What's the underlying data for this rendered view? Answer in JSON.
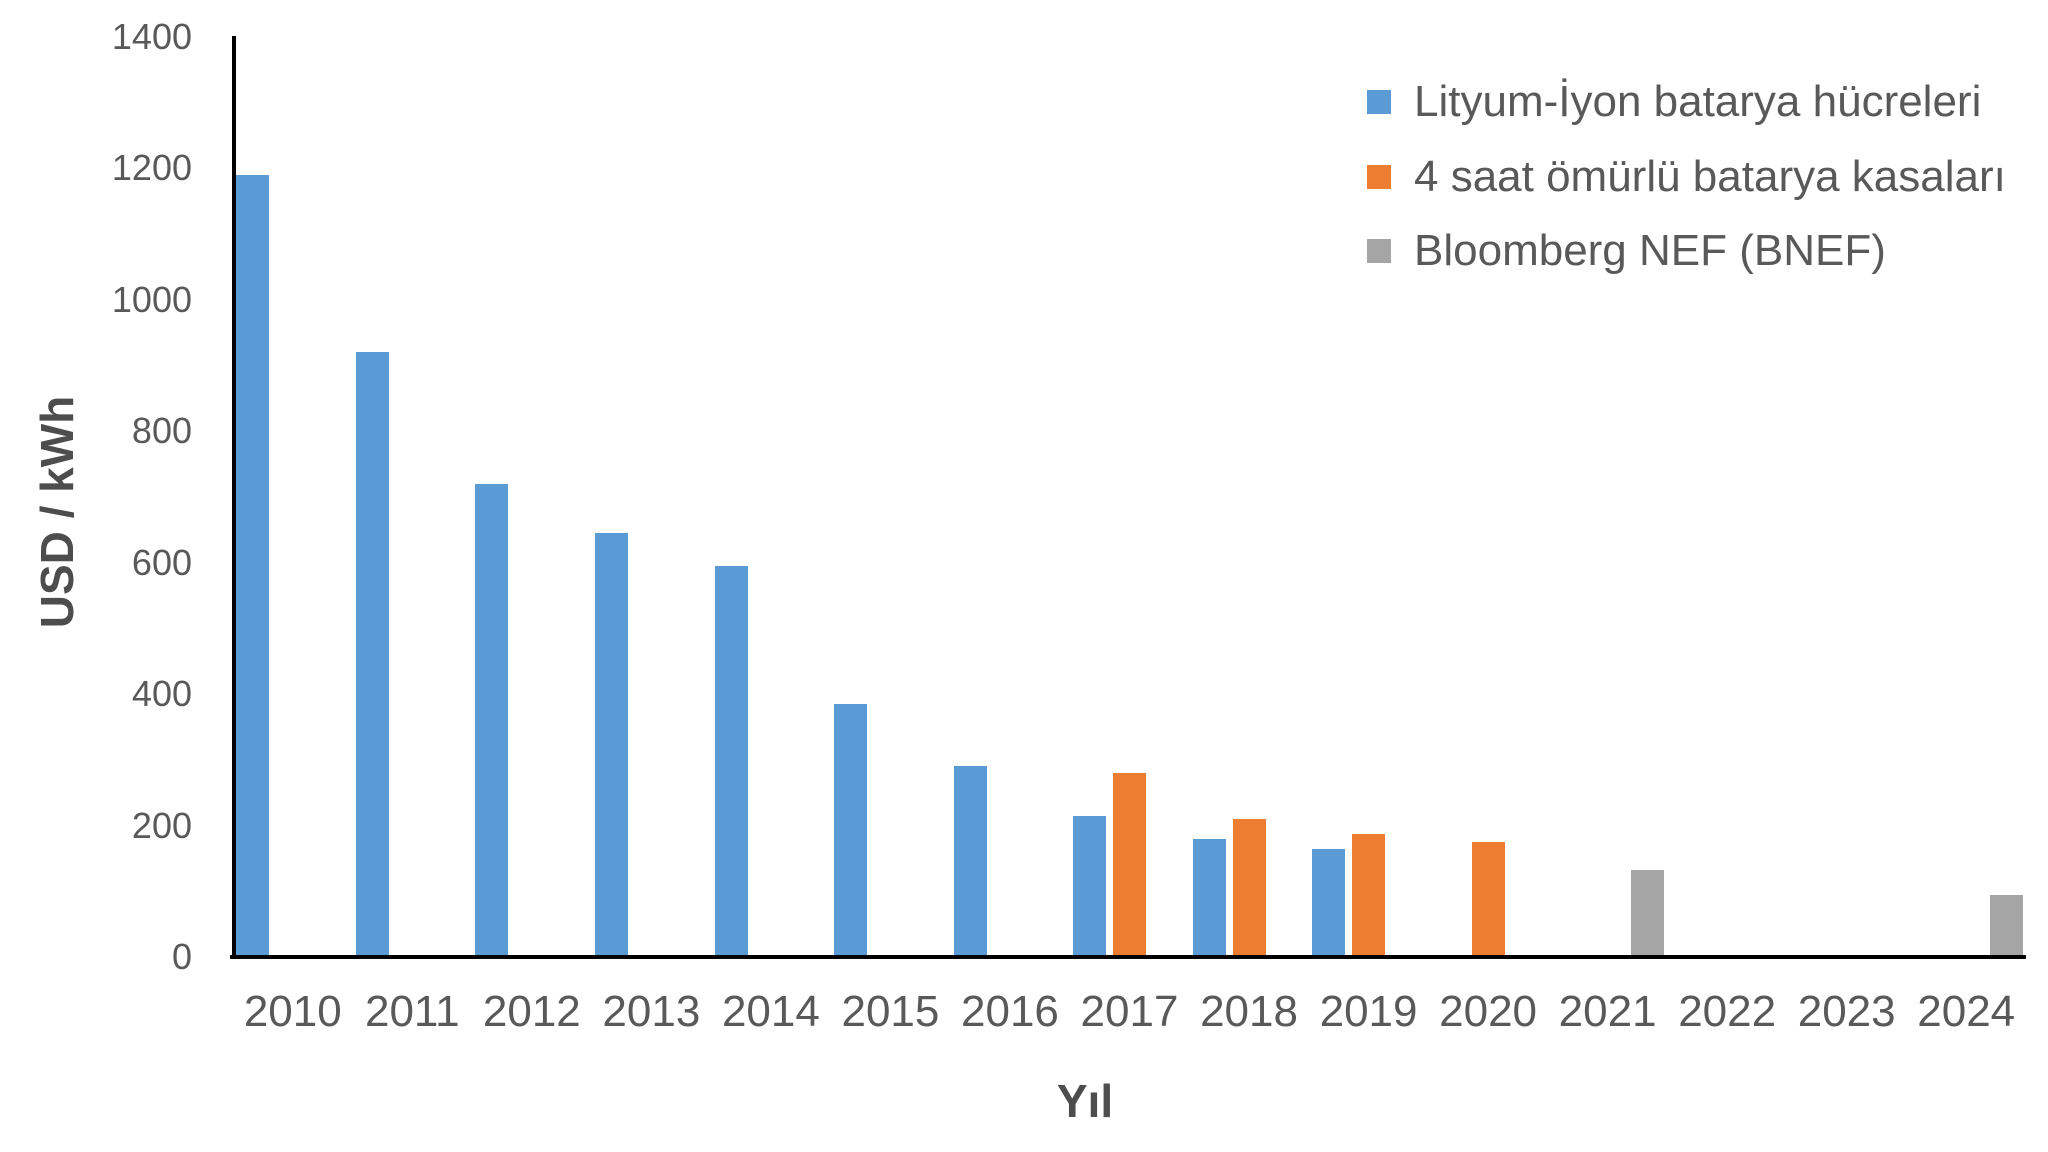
{
  "chart_data": {
    "type": "bar",
    "title": "",
    "xlabel": "Yıl",
    "ylabel": "USD / kWh",
    "categories": [
      "2010",
      "2011",
      "2012",
      "2013",
      "2014",
      "2015",
      "2016",
      "2017",
      "2018",
      "2019",
      "2020",
      "2021",
      "2022",
      "2023",
      "2024"
    ],
    "series": [
      {
        "name": "Lityum-İyon batarya hücreleri",
        "color": "#5B9BD5",
        "values": [
          1190,
          920,
          720,
          645,
          595,
          385,
          290,
          215,
          180,
          165,
          0,
          0,
          0,
          0,
          0
        ]
      },
      {
        "name": "4 saat ömürlü batarya kasaları",
        "color": "#ED7D31",
        "values": [
          0,
          0,
          0,
          0,
          0,
          0,
          0,
          280,
          210,
          187,
          175,
          0,
          0,
          0,
          0
        ]
      },
      {
        "name": "Bloomberg NEF (BNEF)",
        "color": "#A5A5A5",
        "values": [
          0,
          0,
          0,
          0,
          0,
          0,
          0,
          0,
          0,
          0,
          0,
          132,
          0,
          0,
          95
        ]
      }
    ],
    "ylim": [
      0,
      1400
    ],
    "yticks": [
      0,
      200,
      400,
      600,
      800,
      1000,
      1200,
      1400
    ],
    "grid": false,
    "legend_position": "top-right",
    "background": "#FFFFFF",
    "axis_color": "#000000",
    "tick_text_color": "#595959",
    "axis_title_color": "#4d4d4d"
  }
}
